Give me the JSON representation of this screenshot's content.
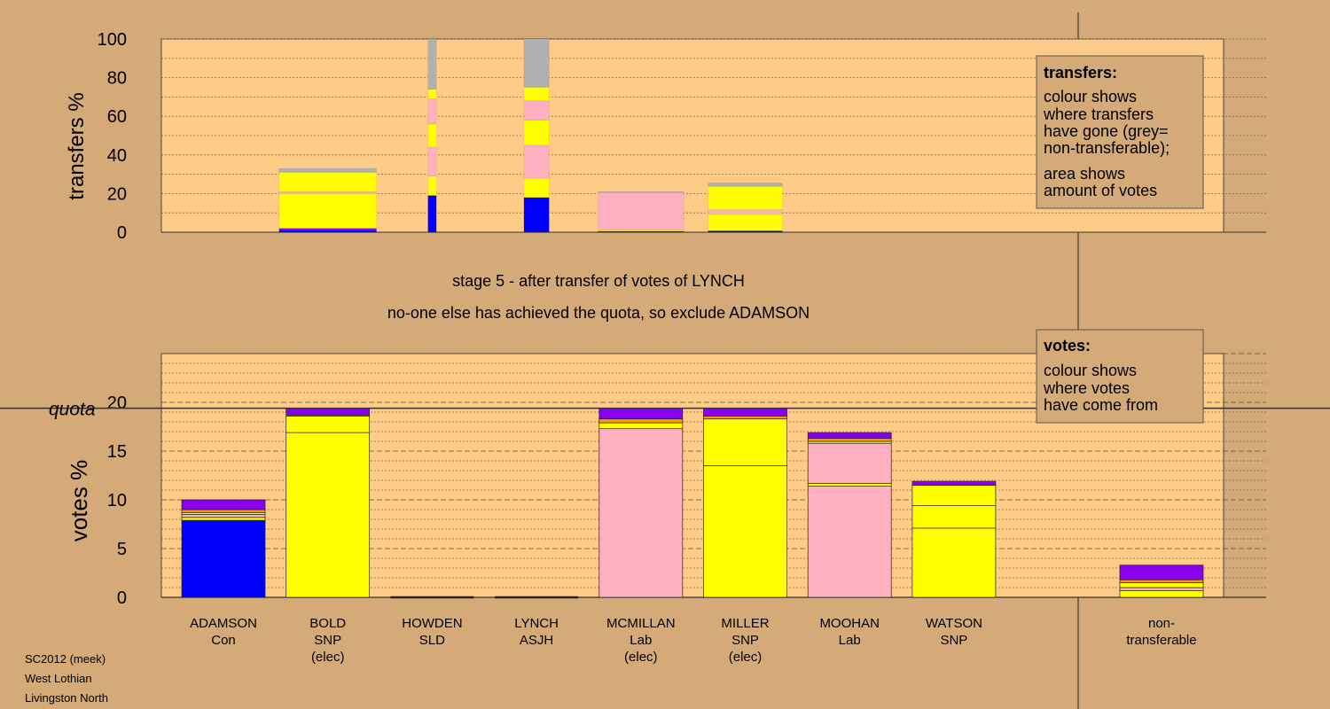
{
  "stage_title": "stage 5 - after transfer of votes of LYNCH",
  "stage_subtitle": "no-one else has achieved the quota, so exclude ADAMSON",
  "footer": [
    "SC2012 (meek)",
    "West Lothian",
    "Livingston North"
  ],
  "colors": {
    "page_bg": "#d4aa78",
    "plot_bg": "#ffcc88",
    "Con": "#0000ff",
    "SNP": "#ffff00",
    "Lab": "#ffb0c0",
    "SLD": "#ff9900",
    "ASJH": "#8800ee",
    "nontransferable": "#b0b0b0"
  },
  "chart_data": [
    {
      "type": "bar",
      "stacked": true,
      "ylabel": "transfers %",
      "ylim": [
        0,
        100
      ],
      "yticks": [
        0,
        20,
        40,
        60,
        80,
        100
      ],
      "grid": true,
      "legend": {
        "title": "transfers:",
        "lines": [
          "colour shows",
          "where transfers",
          "have gone (grey=",
          "non-transferable);",
          "area shows",
          "amount of votes"
        ],
        "placement": "top-right"
      },
      "columns": [
        {
          "candidate": "BOLD",
          "width_share": 0.93,
          "segments": [
            {
              "party": "Con",
              "value": 1
            },
            {
              "party": "ASJH",
              "value": 1
            },
            {
              "party": "SNP",
              "value": 18
            },
            {
              "party": "Lab",
              "value": 1
            },
            {
              "party": "SNP",
              "value": 10
            },
            {
              "party": "nontransferable",
              "value": 2
            }
          ]
        },
        {
          "candidate": "HOWDEN",
          "width_share": 0.08,
          "segments": [
            {
              "party": "Con",
              "value": 19
            },
            {
              "party": "SNP",
              "value": 10
            },
            {
              "party": "Lab",
              "value": 15
            },
            {
              "party": "SNP",
              "value": 12
            },
            {
              "party": "Lab",
              "value": 13
            },
            {
              "party": "SNP",
              "value": 5
            },
            {
              "party": "nontransferable",
              "value": 26
            }
          ]
        },
        {
          "candidate": "LYNCH",
          "width_share": 0.24,
          "segments": [
            {
              "party": "Con",
              "value": 18
            },
            {
              "party": "SNP",
              "value": 10
            },
            {
              "party": "Lab",
              "value": 17
            },
            {
              "party": "SNP",
              "value": 13
            },
            {
              "party": "Lab",
              "value": 10
            },
            {
              "party": "SNP",
              "value": 7
            },
            {
              "party": "nontransferable",
              "value": 25
            }
          ]
        },
        {
          "candidate": "MCMILLAN",
          "width_share": 0.82,
          "segments": [
            {
              "party": "Con",
              "value": 0.5
            },
            {
              "party": "SNP",
              "value": 0.5
            },
            {
              "party": "Lab",
              "value": 19.5
            },
            {
              "party": "nontransferable",
              "value": 0.5
            }
          ]
        },
        {
          "candidate": "MILLER",
          "width_share": 0.71,
          "segments": [
            {
              "party": "Con",
              "value": 0.7
            },
            {
              "party": "SNP",
              "value": 8.5
            },
            {
              "party": "Lab",
              "value": 2.5
            },
            {
              "party": "SNP",
              "value": 12
            },
            {
              "party": "nontransferable",
              "value": 1.8
            }
          ]
        }
      ]
    },
    {
      "type": "bar",
      "stacked": true,
      "ylabel": "votes %",
      "ylim": [
        0,
        25
      ],
      "yticks": [
        0,
        5,
        10,
        15,
        20
      ],
      "grid": true,
      "quota": 19.4,
      "quota_label": "quota",
      "legend": {
        "title": "votes:",
        "lines": [
          "colour shows",
          "where votes",
          "have come from"
        ],
        "placement": "top-right"
      },
      "categories": [
        {
          "name": "ADAMSON",
          "sub": [
            "Con"
          ]
        },
        {
          "name": "BOLD",
          "sub": [
            "SNP",
            "(elec)"
          ]
        },
        {
          "name": "HOWDEN",
          "sub": [
            "SLD"
          ]
        },
        {
          "name": "LYNCH",
          "sub": [
            "ASJH"
          ]
        },
        {
          "name": "MCMILLAN",
          "sub": [
            "Lab",
            "(elec)"
          ]
        },
        {
          "name": "MILLER",
          "sub": [
            "SNP",
            "(elec)"
          ]
        },
        {
          "name": "MOOHAN",
          "sub": [
            "Lab"
          ]
        },
        {
          "name": "WATSON",
          "sub": [
            "SNP"
          ]
        },
        {
          "name": "",
          "sub": [
            "non-",
            "transferable"
          ]
        }
      ],
      "stacks": [
        [
          {
            "party": "Con",
            "value": 7.9
          },
          {
            "party": "SNP",
            "value": 0.3
          },
          {
            "party": "Lab",
            "value": 0.3
          },
          {
            "party": "SNP",
            "value": 0.2
          },
          {
            "party": "SLD",
            "value": 0.3
          },
          {
            "party": "ASJH",
            "value": 1.0
          }
        ],
        [
          {
            "party": "SNP",
            "value": 16.9
          },
          {
            "party": "SNP",
            "value": 1.7
          },
          {
            "party": "Lab",
            "value": 0.1
          },
          {
            "party": "ASJH",
            "value": 0.7
          }
        ],
        [],
        [],
        [
          {
            "party": "Lab",
            "value": 17.3
          },
          {
            "party": "SNP",
            "value": 0.6
          },
          {
            "party": "SLD",
            "value": 0.4
          },
          {
            "party": "ASJH",
            "value": 1.1
          }
        ],
        [
          {
            "party": "SNP",
            "value": 13.5
          },
          {
            "party": "SNP",
            "value": 4.8
          },
          {
            "party": "SLD",
            "value": 0.3
          },
          {
            "party": "ASJH",
            "value": 0.8
          }
        ],
        [
          {
            "party": "Lab",
            "value": 11.4
          },
          {
            "party": "SNP",
            "value": 0.3
          },
          {
            "party": "Lab",
            "value": 4.1
          },
          {
            "party": "SNP",
            "value": 0.2
          },
          {
            "party": "SLD",
            "value": 0.3
          },
          {
            "party": "ASJH",
            "value": 0.6
          }
        ],
        [
          {
            "party": "SNP",
            "value": 7.1
          },
          {
            "party": "SNP",
            "value": 2.3
          },
          {
            "party": "SNP",
            "value": 2.1
          },
          {
            "party": "ASJH",
            "value": 0.4
          }
        ],
        [
          {
            "party": "SNP",
            "value": 0.7
          },
          {
            "party": "Lab",
            "value": 0.3
          },
          {
            "party": "SNP",
            "value": 0.5
          },
          {
            "party": "SLD",
            "value": 0.3
          },
          {
            "party": "ASJH",
            "value": 1.5
          }
        ]
      ]
    }
  ]
}
